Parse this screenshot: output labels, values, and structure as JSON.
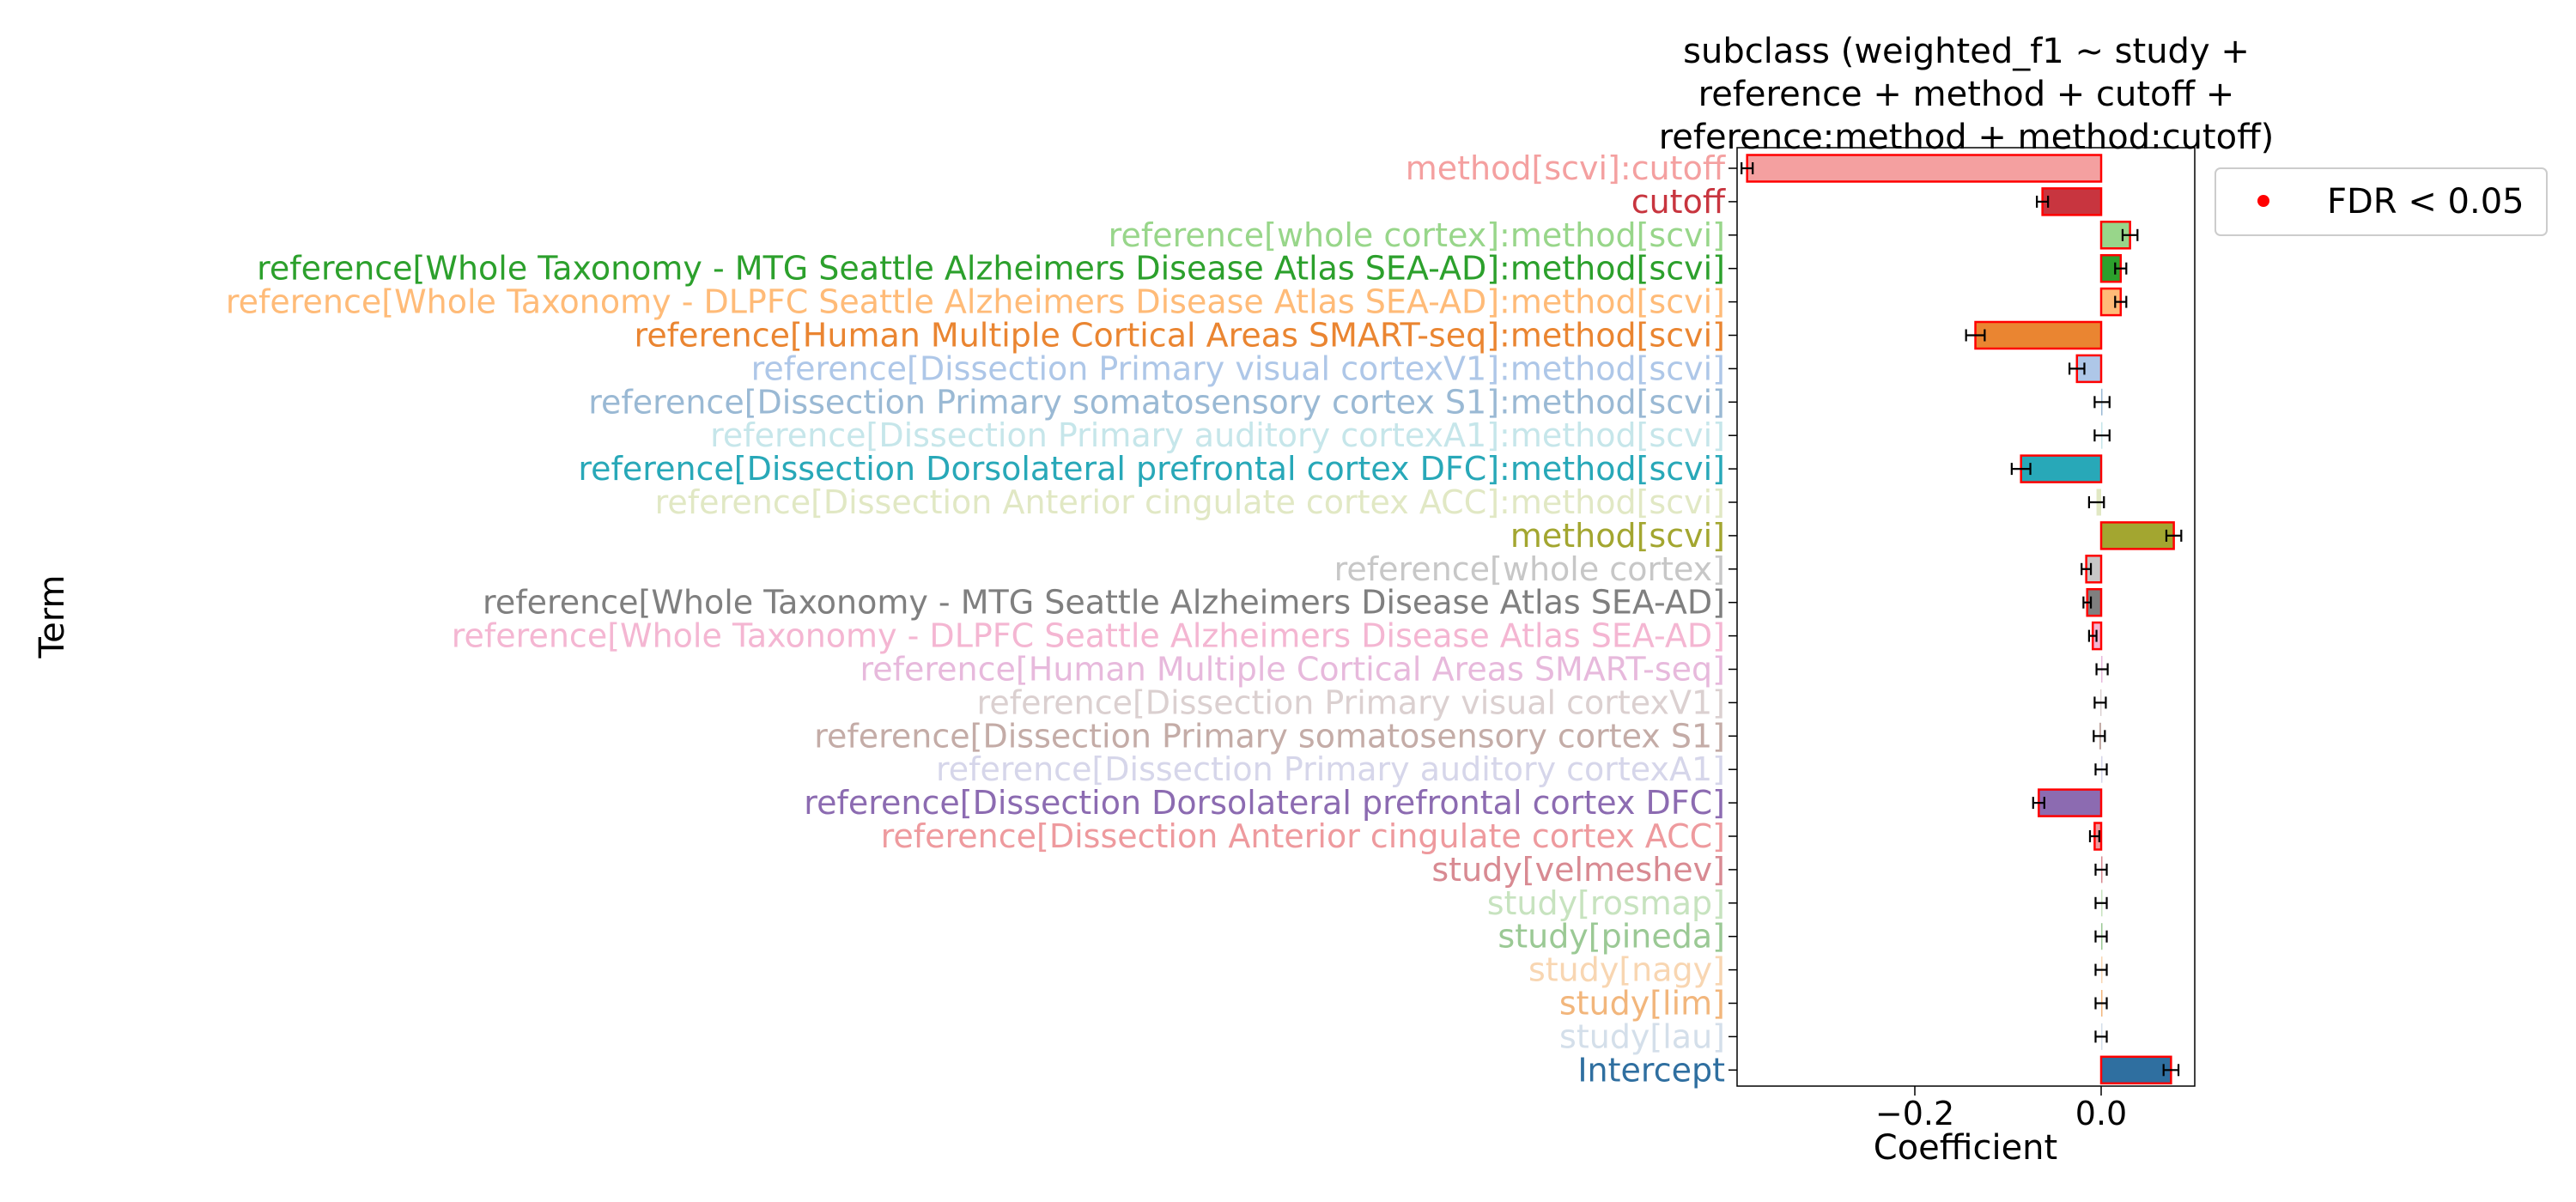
{
  "chart_data": {
    "type": "bar",
    "orientation": "horizontal",
    "title_lines": [
      "subclass (weighted_f1 ~ study +",
      "reference + method + cutoff +",
      "reference:method + method:cutoff)"
    ],
    "xlabel": "Coefficient",
    "ylabel": "Term",
    "xlim": [
      -0.4,
      0.1
    ],
    "xticks": [
      {
        "value": -0.2,
        "label": "−0.2"
      },
      {
        "value": 0.0,
        "label": "0.0"
      }
    ],
    "grid": false,
    "legend": {
      "position": "top-right",
      "label": "FDR < 0.05",
      "marker_color": "#ff0000"
    },
    "significant_edge_color": "#ff0000",
    "terms": [
      {
        "label": "method[scvi]:cutoff",
        "value": -0.38,
        "err": 0.006,
        "color": "#f4a0a0",
        "fdr": true
      },
      {
        "label": "cutoff",
        "value": -0.063,
        "err": 0.006,
        "color": "#c8353f",
        "fdr": true
      },
      {
        "label": "reference[whole cortex]:method[scvi]",
        "value": 0.031,
        "err": 0.008,
        "color": "#98d68a",
        "fdr": true
      },
      {
        "label": "reference[Whole Taxonomy - MTG Seattle Alzheimers Disease Atlas SEA-AD]:method[scvi]",
        "value": 0.021,
        "err": 0.006,
        "color": "#2ca02c",
        "fdr": true
      },
      {
        "label": "reference[Whole Taxonomy - DLPFC Seattle Alzheimers Disease Atlas SEA-AD]:method[scvi]",
        "value": 0.021,
        "err": 0.006,
        "color": "#ffbb78",
        "fdr": true
      },
      {
        "label": "reference[Human Multiple Cortical Areas SMART-seq]:method[scvi]",
        "value": -0.135,
        "err": 0.01,
        "color": "#ea8531",
        "fdr": true
      },
      {
        "label": "reference[Dissection Primary visual cortexV1]:method[scvi]",
        "value": -0.026,
        "err": 0.008,
        "color": "#aec7e8",
        "fdr": true
      },
      {
        "label": "reference[Dissection Primary somatosensory cortex S1]:method[scvi]",
        "value": 0.001,
        "err": 0.008,
        "color": "#9ab9d4",
        "fdr": false
      },
      {
        "label": "reference[Dissection Primary auditory cortexA1]:method[scvi]",
        "value": 0.001,
        "err": 0.008,
        "color": "#c6e6ea",
        "fdr": false
      },
      {
        "label": "reference[Dissection Dorsolateral prefrontal cortex DFC]:method[scvi]",
        "value": -0.086,
        "err": 0.01,
        "color": "#28a8b8",
        "fdr": true
      },
      {
        "label": "reference[Dissection Anterior cingulate cortex ACC]:method[scvi]",
        "value": -0.005,
        "err": 0.008,
        "color": "#e1e8c4",
        "fdr": false
      },
      {
        "label": "method[scvi]",
        "value": 0.078,
        "err": 0.008,
        "color": "#a3a630",
        "fdr": true
      },
      {
        "label": "reference[whole cortex]",
        "value": -0.016,
        "err": 0.005,
        "color": "#c7c7c7",
        "fdr": true
      },
      {
        "label": "reference[Whole Taxonomy - MTG Seattle Alzheimers Disease Atlas SEA-AD]",
        "value": -0.015,
        "err": 0.004,
        "color": "#7f7f7f",
        "fdr": true
      },
      {
        "label": "reference[Whole Taxonomy - DLPFC Seattle Alzheimers Disease Atlas SEA-AD]",
        "value": -0.009,
        "err": 0.004,
        "color": "#f4b6d2",
        "fdr": true
      },
      {
        "label": "reference[Human Multiple Cortical Areas SMART-seq]",
        "value": 0.001,
        "err": 0.006,
        "color": "#e7b9dc",
        "fdr": false
      },
      {
        "label": "reference[Dissection Primary visual cortexV1]",
        "value": -0.001,
        "err": 0.006,
        "color": "#dbd0d0",
        "fdr": false
      },
      {
        "label": "reference[Dissection Primary somatosensory cortex S1]",
        "value": -0.002,
        "err": 0.006,
        "color": "#c4aca7",
        "fdr": false
      },
      {
        "label": "reference[Dissection Primary auditory cortexA1]",
        "value": 0.0,
        "err": 0.006,
        "color": "#d6d6ea",
        "fdr": false
      },
      {
        "label": "reference[Dissection Dorsolateral prefrontal cortex DFC]",
        "value": -0.067,
        "err": 0.006,
        "color": "#8c6bb1",
        "fdr": true
      },
      {
        "label": "reference[Dissection Anterior cingulate cortex ACC]",
        "value": -0.007,
        "err": 0.005,
        "color": "#ee9a9e",
        "fdr": true
      },
      {
        "label": "study[velmeshev]",
        "value": 0.0,
        "err": 0.006,
        "color": "#d88a92",
        "fdr": false
      },
      {
        "label": "study[rosmap]",
        "value": 0.0,
        "err": 0.006,
        "color": "#c7e3bf",
        "fdr": false
      },
      {
        "label": "study[pineda]",
        "value": 0.0,
        "err": 0.006,
        "color": "#9bc995",
        "fdr": false
      },
      {
        "label": "study[nagy]",
        "value": 0.0,
        "err": 0.006,
        "color": "#f8d6b2",
        "fdr": false
      },
      {
        "label": "study[lim]",
        "value": 0.0,
        "err": 0.006,
        "color": "#f2b67c",
        "fdr": false
      },
      {
        "label": "study[lau]",
        "value": 0.0,
        "err": 0.006,
        "color": "#d4dfea",
        "fdr": false
      },
      {
        "label": "Intercept",
        "value": 0.075,
        "err": 0.008,
        "color": "#2f6fa0",
        "fdr": true
      }
    ]
  }
}
